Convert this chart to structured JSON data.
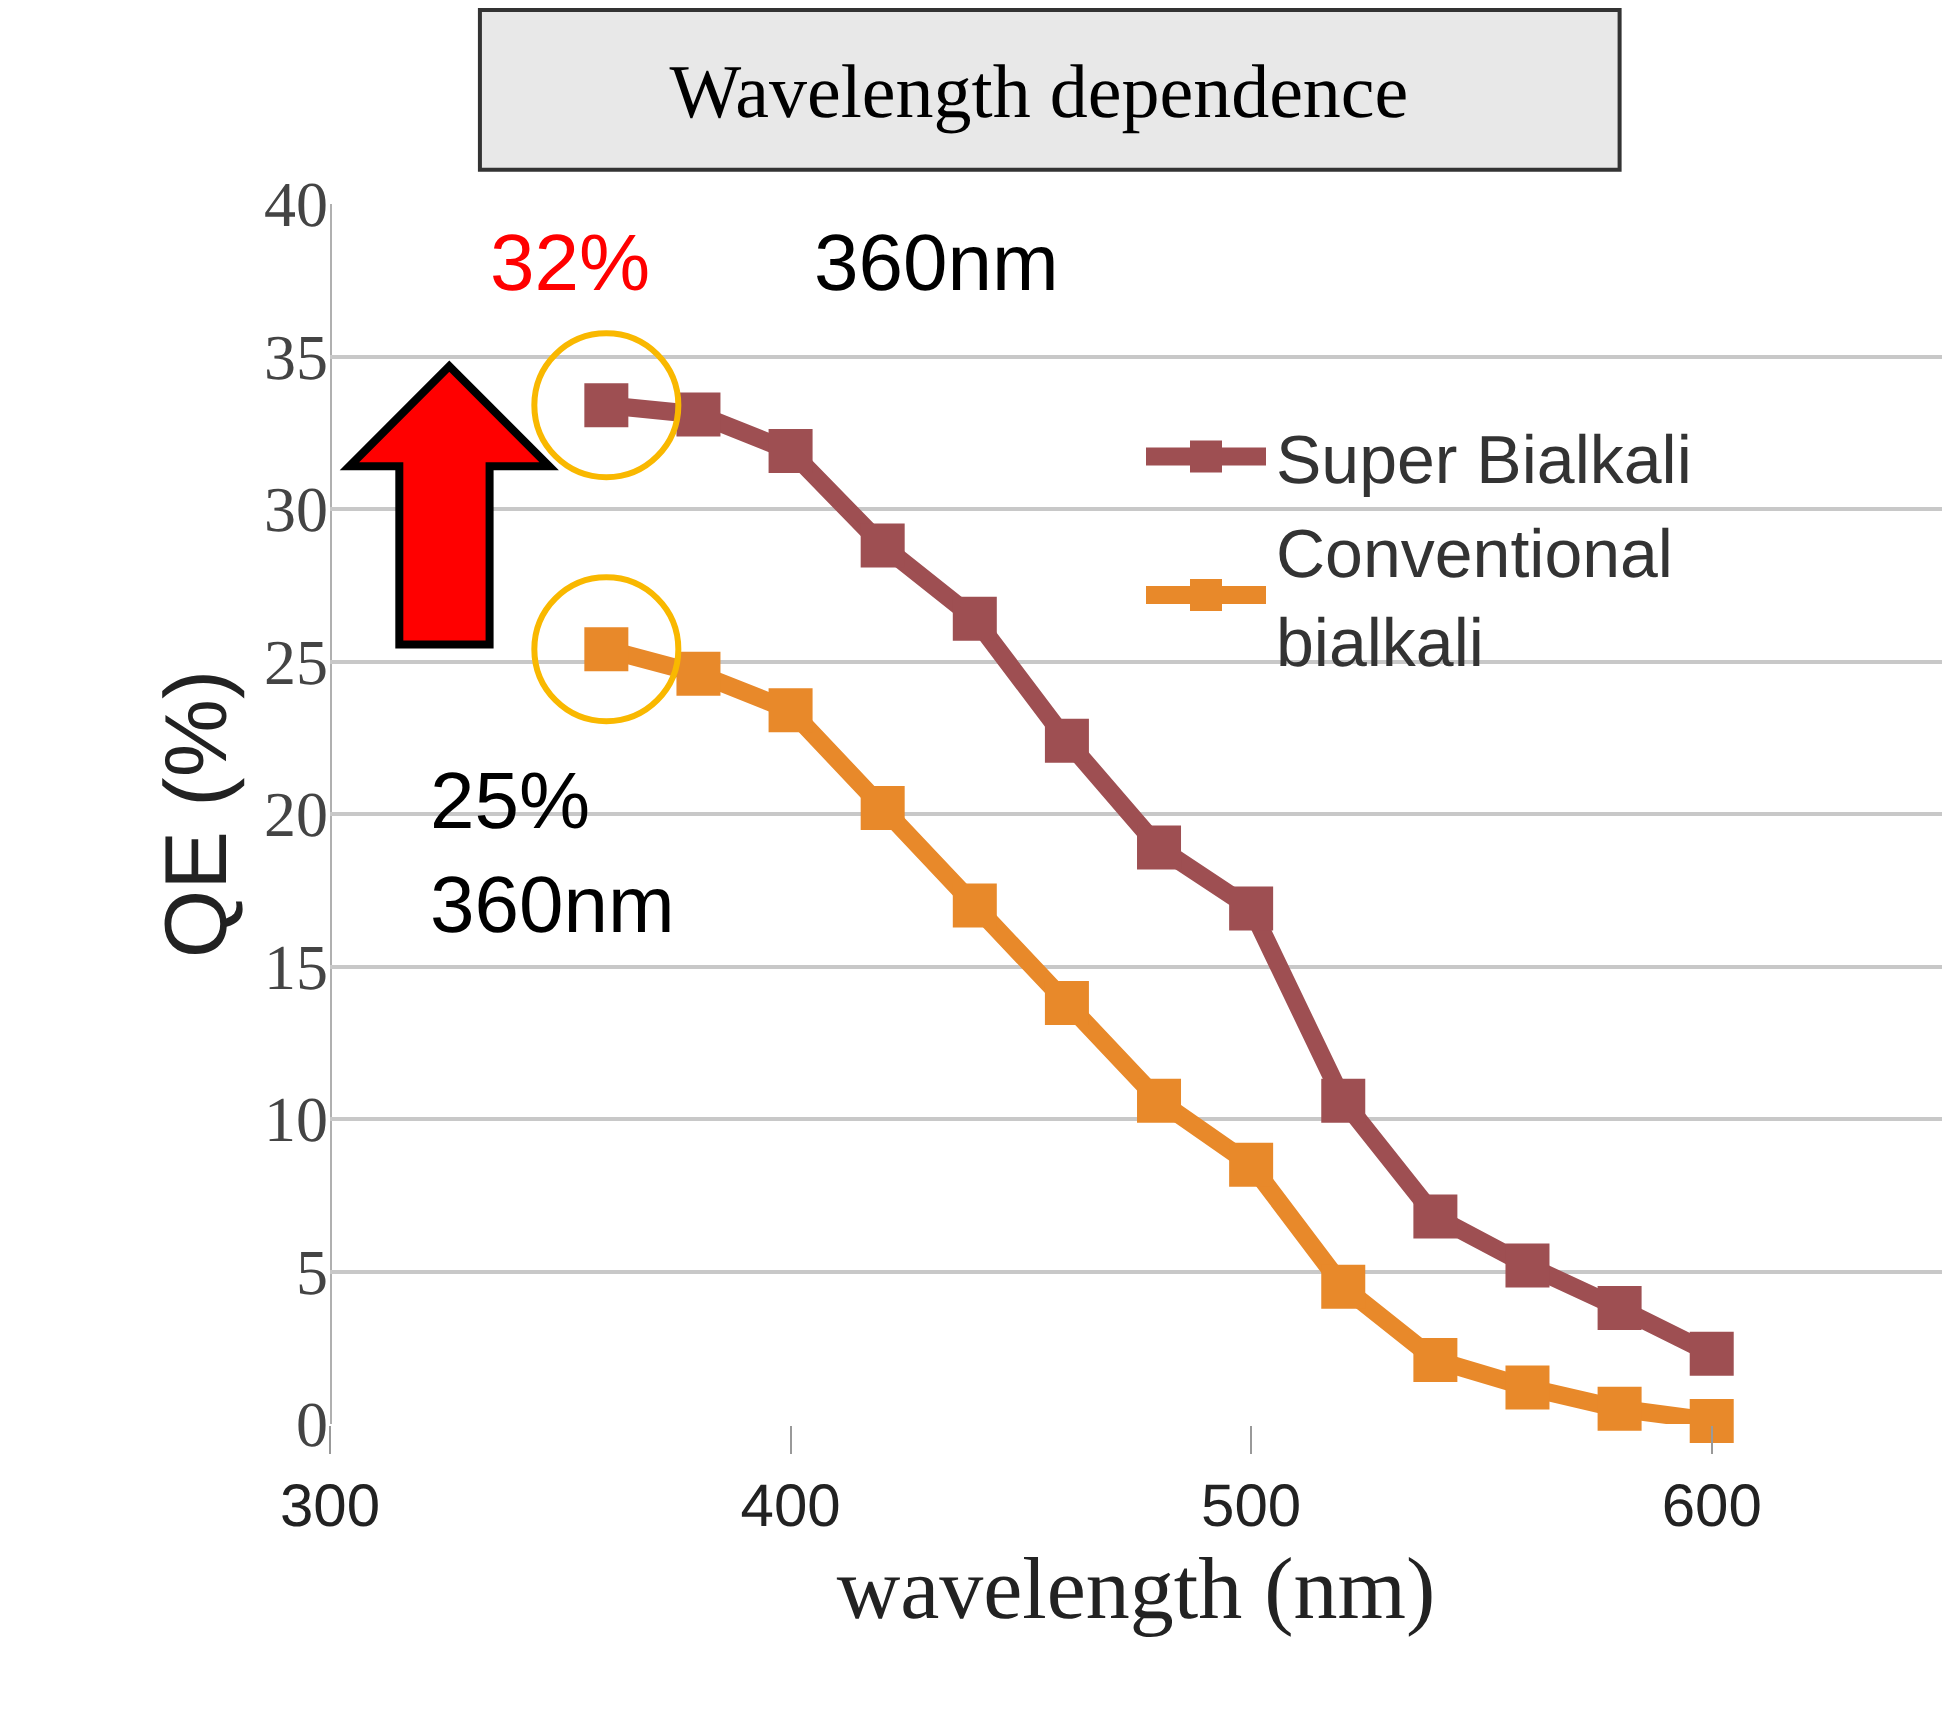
{
  "chart_data": {
    "type": "line",
    "title": "Wavelength dependence",
    "xlabel": "wavelength (nm)",
    "ylabel": "QE (%)",
    "x": [
      360,
      380,
      400,
      420,
      440,
      460,
      480,
      500,
      520,
      540,
      560,
      580,
      600
    ],
    "series": [
      {
        "name": "Super Bialkali",
        "color": "#9e4f52",
        "values": [
          33.4,
          33.1,
          31.9,
          28.8,
          26.4,
          22.4,
          18.9,
          16.9,
          10.6,
          6.8,
          5.2,
          3.8,
          2.3
        ]
      },
      {
        "name": "Conventional bialkali",
        "color": "#e8892a",
        "values": [
          25.4,
          24.6,
          23.4,
          20.2,
          17.0,
          13.8,
          10.6,
          8.5,
          4.5,
          2.1,
          1.2,
          0.5,
          0.1
        ]
      }
    ],
    "xlim": [
      300,
      650
    ],
    "xticks": [
      300,
      400,
      500,
      600
    ],
    "ylim": [
      0,
      40
    ],
    "yticks": [
      0,
      5,
      10,
      15,
      20,
      25,
      30,
      35,
      40
    ],
    "grid": "y",
    "legend": "top right",
    "marker": "square",
    "line_style": "solid",
    "annotations": [
      "32%",
      "360nm",
      "25%\n360nm"
    ]
  }
}
